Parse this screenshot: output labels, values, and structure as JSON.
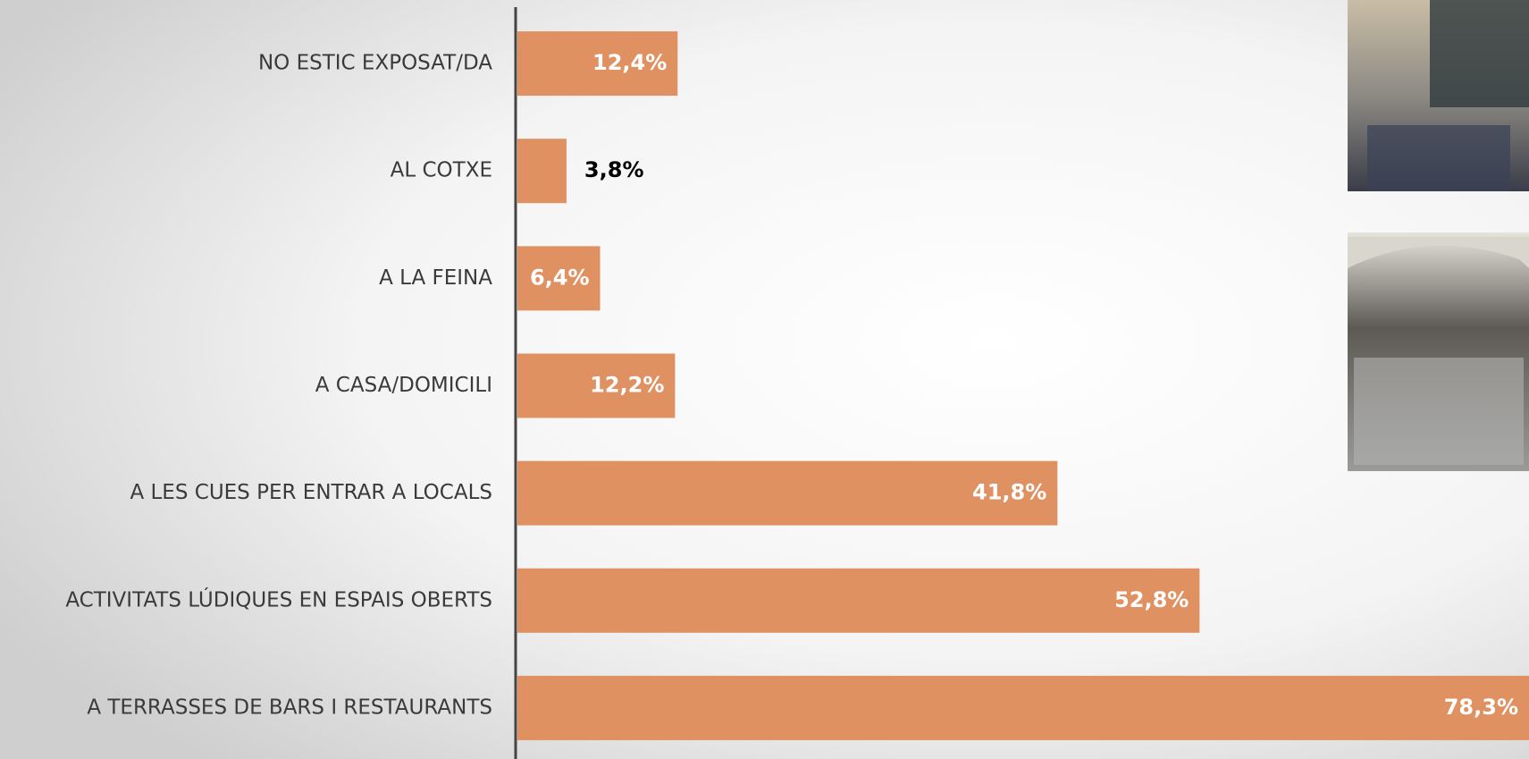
{
  "chart_data": {
    "type": "bar",
    "orientation": "horizontal",
    "categories": [
      "NO ESTIC EXPOSAT/DA",
      "AL COTXE",
      "A LA FEINA",
      "A CASA/DOMICILI",
      "A LES CUES PER ENTRAR A LOCALS",
      "ACTIVITATS LÚDIQUES EN ESPAIS OBERTS",
      "A TERRASSES DE BARS I RESTAURANTS"
    ],
    "values": [
      12.4,
      3.8,
      6.4,
      12.2,
      41.8,
      52.8,
      78.3
    ],
    "value_labels": [
      "12,4%",
      "3,8%",
      "6,4%",
      "12,2%",
      "41,8%",
      "52,8%",
      "78,3%"
    ],
    "color": "#e09162"
  }
}
